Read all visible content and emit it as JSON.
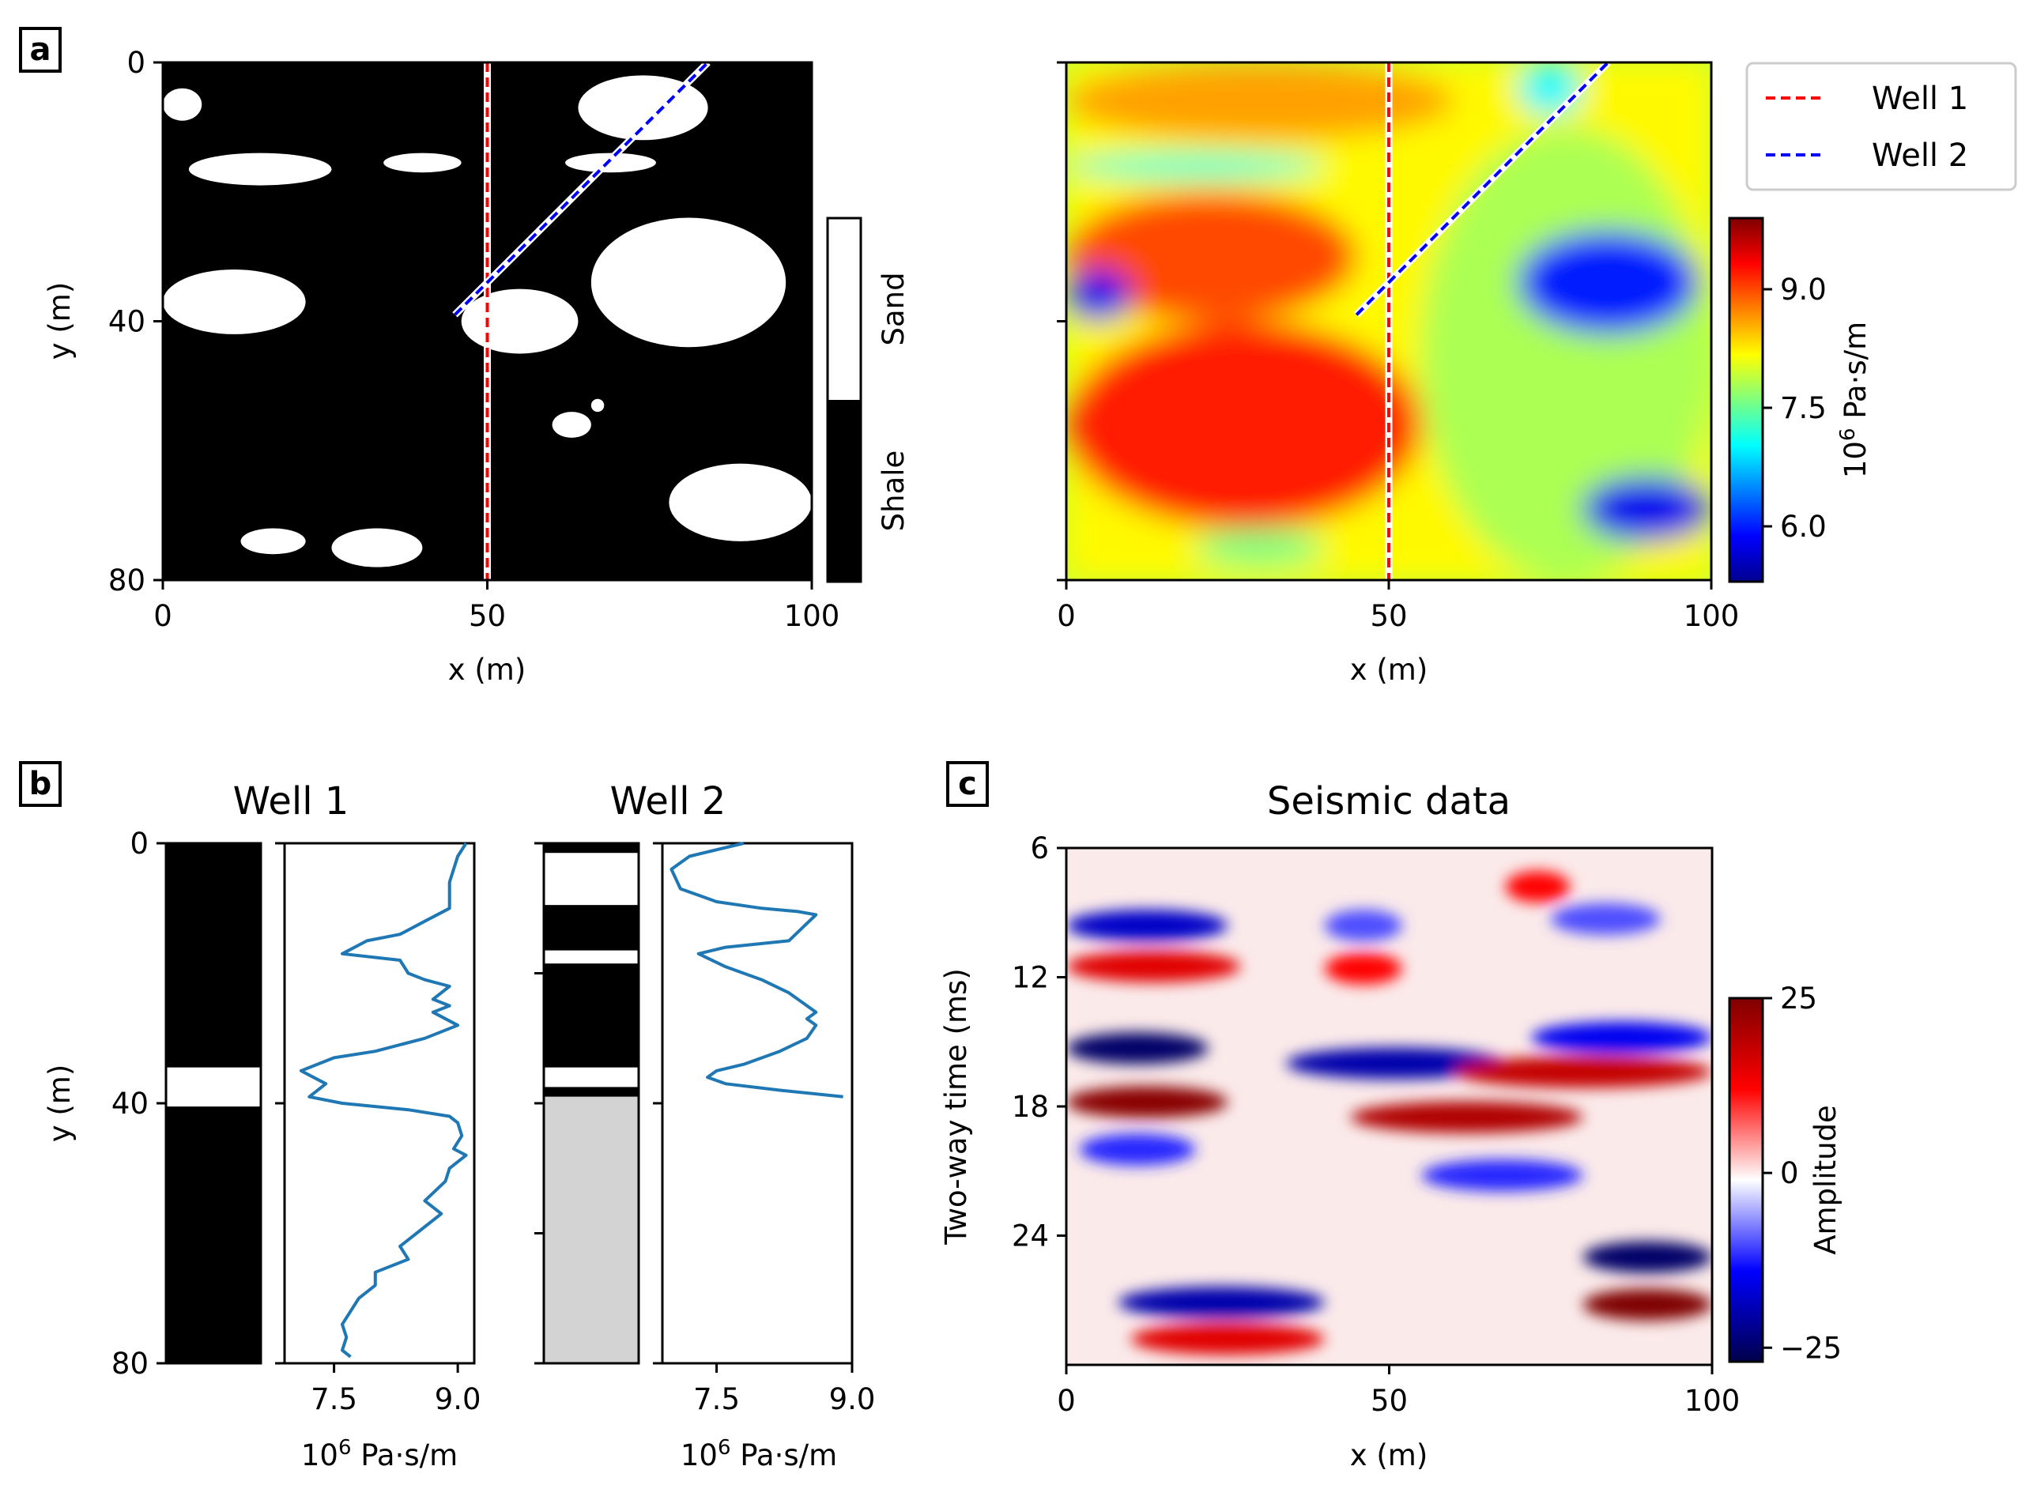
{
  "panel_labels": {
    "a": "a",
    "b": "b",
    "c": "c"
  },
  "colors": {
    "well1": "#ff0000",
    "well2": "#0000ff",
    "log_line": "#1f77b4",
    "no_data": "#d3d3d3"
  },
  "chart_data": [
    {
      "id": "facies-map",
      "type": "heatmap",
      "title": "",
      "xlabel": "x (m)",
      "ylabel": "y (m)",
      "xlim": [
        0,
        100
      ],
      "ylim": [
        80,
        0
      ],
      "xticks": [
        "0",
        "50",
        "100"
      ],
      "yticks": [
        "0",
        "40",
        "80"
      ],
      "colorbar": {
        "type": "categorical",
        "categories": [
          "Shale",
          "Sand"
        ],
        "colors": [
          "#000000",
          "#ffffff"
        ]
      },
      "sand_bodies": [
        {
          "x": [
            0,
            6
          ],
          "y": [
            4,
            9
          ]
        },
        {
          "x": [
            4,
            26
          ],
          "y": [
            14,
            19
          ]
        },
        {
          "x": [
            34,
            46
          ],
          "y": [
            14,
            17
          ]
        },
        {
          "x": [
            0,
            22
          ],
          "y": [
            32,
            42
          ]
        },
        {
          "x": [
            46,
            64
          ],
          "y": [
            35,
            45
          ]
        },
        {
          "x": [
            66,
            96
          ],
          "y": [
            24,
            44
          ]
        },
        {
          "x": [
            64,
            84
          ],
          "y": [
            2,
            12
          ]
        },
        {
          "x": [
            62,
            76
          ],
          "y": [
            14,
            17
          ]
        },
        {
          "x": [
            60,
            66
          ],
          "y": [
            54,
            58
          ]
        },
        {
          "x": [
            66,
            68
          ],
          "y": [
            52,
            54
          ]
        },
        {
          "x": [
            78,
            100
          ],
          "y": [
            62,
            74
          ]
        },
        {
          "x": [
            12,
            22
          ],
          "y": [
            72,
            76
          ]
        },
        {
          "x": [
            26,
            40
          ],
          "y": [
            72,
            78
          ]
        }
      ],
      "wells": [
        {
          "name": "Well 1",
          "x": [
            50,
            50
          ],
          "y": [
            0,
            80
          ]
        },
        {
          "name": "Well 2",
          "x": [
            45,
            84
          ],
          "y": [
            39,
            0
          ]
        }
      ]
    },
    {
      "id": "impedance-map",
      "type": "heatmap",
      "xlabel": "x (m)",
      "xlim": [
        0,
        100
      ],
      "ylim": [
        80,
        0
      ],
      "xticks": [
        "0",
        "50",
        "100"
      ],
      "colorbar": {
        "label": "10⁶ Pa·s/m",
        "label_base": "10",
        "label_exp": "6",
        "label_unit": "Pa·s/m",
        "range": [
          5.3,
          9.9
        ],
        "ticks": [
          "6.0",
          "7.5",
          "9.0"
        ],
        "colormap": "jet"
      },
      "regions": [
        {
          "x": [
            0,
            100
          ],
          "y": [
            0,
            80
          ],
          "value": 8.2
        },
        {
          "x": [
            55,
            100
          ],
          "y": [
            10,
            80
          ],
          "value": 7.8
        },
        {
          "x": [
            0,
            60
          ],
          "y": [
            0,
            12
          ],
          "value": 8.6
        },
        {
          "x": [
            0,
            45
          ],
          "y": [
            20,
            40
          ],
          "value": 9.0
        },
        {
          "x": [
            0,
            55
          ],
          "y": [
            40,
            72
          ],
          "value": 9.2
        },
        {
          "x": [
            0,
            10
          ],
          "y": [
            32,
            40
          ],
          "value": 5.8
        },
        {
          "x": [
            70,
            98
          ],
          "y": [
            26,
            42
          ],
          "value": 6.0
        },
        {
          "x": [
            80,
            100
          ],
          "y": [
            64,
            74
          ],
          "value": 5.8
        },
        {
          "x": [
            70,
            80
          ],
          "y": [
            0,
            8
          ],
          "value": 7.0
        },
        {
          "x": [
            0,
            40
          ],
          "y": [
            14,
            18
          ],
          "value": 7.2
        },
        {
          "x": [
            20,
            40
          ],
          "y": [
            72,
            78
          ],
          "value": 7.6
        }
      ],
      "wells": [
        {
          "name": "Well 1",
          "x": [
            50,
            50
          ],
          "y": [
            0,
            80
          ]
        },
        {
          "name": "Well 2",
          "x": [
            45,
            84
          ],
          "y": [
            39,
            0
          ]
        }
      ]
    },
    {
      "id": "well1-facies",
      "type": "table",
      "title": "Well 1",
      "ylabel": "y (m)",
      "ylim": [
        80,
        0
      ],
      "yticks": [
        "0",
        "40",
        "80"
      ],
      "intervals": [
        {
          "top": 0,
          "bottom": 34.5,
          "facies": "Shale"
        },
        {
          "top": 34.5,
          "bottom": 40.5,
          "facies": "Sand"
        },
        {
          "top": 40.5,
          "bottom": 80,
          "facies": "Shale"
        }
      ]
    },
    {
      "id": "well1-log",
      "type": "line",
      "xlabel": "10⁶ Pa·s/m",
      "xlabel_base": "10",
      "xlabel_exp": "6",
      "xlabel_unit": "Pa·s/m",
      "xlim": [
        6.9,
        9.2
      ],
      "ylim": [
        80,
        0
      ],
      "xticks": [
        "7.5",
        "9.0"
      ],
      "x": [
        9.1,
        9.0,
        8.95,
        8.9,
        8.9,
        8.6,
        8.3,
        7.9,
        7.6,
        8.3,
        8.4,
        8.6,
        8.9,
        8.7,
        8.9,
        8.7,
        9.0,
        8.6,
        8.0,
        7.5,
        7.1,
        7.4,
        7.2,
        7.6,
        8.4,
        8.9,
        9.0,
        9.05,
        8.95,
        9.1,
        8.9,
        8.85,
        8.6,
        8.8,
        8.5,
        8.3,
        8.4,
        8.0,
        8.0,
        7.8,
        7.7,
        7.6,
        7.65,
        7.6,
        7.7
      ],
      "y": [
        0,
        2,
        4,
        6,
        10,
        12,
        14,
        15,
        17,
        18,
        20,
        21,
        22,
        24,
        25,
        26,
        28,
        30,
        32,
        33,
        35,
        37,
        39,
        40,
        41,
        42,
        43,
        45,
        47,
        48,
        50,
        52,
        55,
        57,
        60,
        62,
        64,
        66,
        68,
        70,
        72,
        74,
        76,
        78,
        79
      ]
    },
    {
      "id": "well2-facies",
      "type": "table",
      "title": "Well 2",
      "ylim": [
        80,
        0
      ],
      "intervals": [
        {
          "top": 0,
          "bottom": 1.5,
          "facies": "Shale"
        },
        {
          "top": 1.5,
          "bottom": 9.5,
          "facies": "Sand"
        },
        {
          "top": 9.5,
          "bottom": 16.5,
          "facies": "Shale"
        },
        {
          "top": 16.5,
          "bottom": 18.5,
          "facies": "Sand"
        },
        {
          "top": 18.5,
          "bottom": 34.5,
          "facies": "Shale"
        },
        {
          "top": 34.5,
          "bottom": 37.5,
          "facies": "Sand"
        },
        {
          "top": 37.5,
          "bottom": 39,
          "facies": "Shale"
        },
        {
          "top": 39,
          "bottom": 80,
          "facies": "No data"
        }
      ]
    },
    {
      "id": "well2-log",
      "type": "line",
      "xlabel": "10⁶ Pa·s/m",
      "xlabel_base": "10",
      "xlabel_exp": "6",
      "xlabel_unit": "Pa·s/m",
      "xlim": [
        6.9,
        9.0
      ],
      "ylim": [
        80,
        0
      ],
      "xticks": [
        "7.5",
        "9.0"
      ],
      "x": [
        7.8,
        7.2,
        7.0,
        7.1,
        7.5,
        8.0,
        8.4,
        8.6,
        8.45,
        8.3,
        7.6,
        7.3,
        7.6,
        8.0,
        8.3,
        8.5,
        8.6,
        8.5,
        8.6,
        8.5,
        8.2,
        7.8,
        7.5,
        7.4,
        7.6,
        8.2,
        8.9
      ],
      "y": [
        0,
        2,
        4,
        7,
        9,
        10,
        10.5,
        11,
        13,
        15,
        16,
        17,
        19,
        21,
        23,
        25,
        26,
        27,
        28,
        30,
        32,
        34,
        35,
        36,
        37,
        38,
        39
      ]
    },
    {
      "id": "seismic",
      "type": "heatmap",
      "title": "Seismic data",
      "xlabel": "x (m)",
      "ylabel": "Two-way time (ms)",
      "xlim": [
        0,
        100
      ],
      "ylim": [
        30,
        6
      ],
      "xticks": [
        "0",
        "50",
        "100"
      ],
      "yticks": [
        "6",
        "12",
        "18",
        "24"
      ],
      "colorbar": {
        "label": "Amplitude",
        "range": [
          -27,
          25
        ],
        "ticks": [
          "25",
          "0",
          "−25"
        ],
        "colormap": "seismic"
      },
      "events": [
        {
          "x": [
            0,
            25
          ],
          "t": 9.6,
          "amp": -18
        },
        {
          "x": [
            0,
            27
          ],
          "t": 11.5,
          "amp": 15
        },
        {
          "x": [
            0,
            22
          ],
          "t": 15.3,
          "amp": -25
        },
        {
          "x": [
            0,
            25
          ],
          "t": 17.8,
          "amp": 24
        },
        {
          "x": [
            2,
            20
          ],
          "t": 20.0,
          "amp": -12
        },
        {
          "x": [
            34,
            68
          ],
          "t": 16.0,
          "amp": -20
        },
        {
          "x": [
            44,
            80
          ],
          "t": 18.5,
          "amp": 20
        },
        {
          "x": [
            55,
            80
          ],
          "t": 21.2,
          "amp": -12
        },
        {
          "x": [
            60,
            100
          ],
          "t": 16.4,
          "amp": 18
        },
        {
          "x": [
            72,
            100
          ],
          "t": 14.8,
          "amp": -15
        },
        {
          "x": [
            75,
            92
          ],
          "t": 9.3,
          "amp": -10
        },
        {
          "x": [
            80,
            100
          ],
          "t": 25.0,
          "amp": -25
        },
        {
          "x": [
            80,
            100
          ],
          "t": 27.2,
          "amp": 25
        },
        {
          "x": [
            8,
            40
          ],
          "t": 27.1,
          "amp": -20
        },
        {
          "x": [
            10,
            40
          ],
          "t": 28.8,
          "amp": 15
        },
        {
          "x": [
            68,
            78
          ],
          "t": 7.8,
          "amp": 12
        },
        {
          "x": [
            40,
            52
          ],
          "t": 11.6,
          "amp": 12
        },
        {
          "x": [
            40,
            52
          ],
          "t": 9.6,
          "amp": -10
        }
      ]
    }
  ],
  "legend": {
    "items": [
      {
        "label": "Well 1",
        "color": "#ff0000"
      },
      {
        "label": "Well 2",
        "color": "#0000ff"
      }
    ]
  }
}
